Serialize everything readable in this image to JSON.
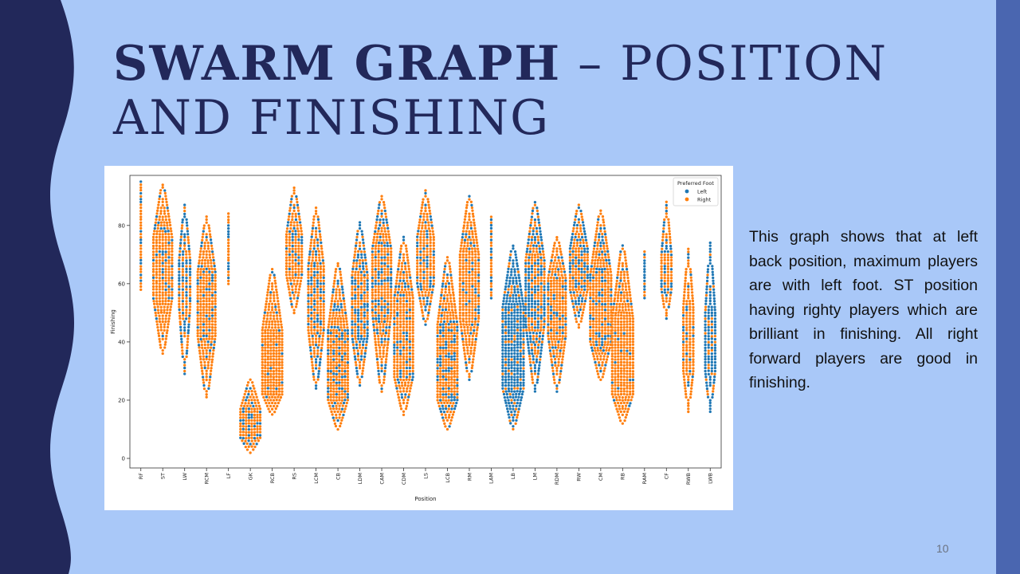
{
  "slide": {
    "title_bold": "SWARM GRAPH",
    "title_dash": " – ",
    "title_rest": "POSITION AND FINISHING",
    "description": "This graph shows that at left back position, maximum players are with left foot. ST position having righty players which are brilliant in finishing. All right forward players are good in finishing.",
    "page_number": "10"
  },
  "colors": {
    "left": "#1f77b4",
    "right": "#ff7f0e",
    "background": "#a9c8f8",
    "dark_band": "#22285a",
    "side_band": "#4a66b0"
  },
  "chart_data": {
    "type": "scatter",
    "subtype": "swarm",
    "xlabel": "Position",
    "ylabel": "Finishing",
    "ylim": [
      0,
      95
    ],
    "yticks": [
      0,
      20,
      40,
      60,
      80
    ],
    "grid": false,
    "legend": {
      "title": "Preferred Foot",
      "placement": "top-right",
      "entries": [
        "Left",
        "Right"
      ]
    },
    "categories": [
      "RF",
      "ST",
      "LW",
      "RCM",
      "LF",
      "GK",
      "RCB",
      "RS",
      "LCM",
      "CB",
      "LDM",
      "CAM",
      "CDM",
      "LS",
      "LCB",
      "RM",
      "LAM",
      "LB",
      "LM",
      "RDM",
      "RW",
      "CM",
      "RB",
      "RAM",
      "CF",
      "RWB",
      "LWB"
    ],
    "distributions": [
      {
        "position": "RF",
        "min": 58,
        "max": 95,
        "q1": 63,
        "median": 68,
        "q3": 75,
        "width": 0.15,
        "left_share": 0.45
      },
      {
        "position": "ST",
        "min": 36,
        "max": 94,
        "q1": 55,
        "median": 66,
        "q3": 76,
        "width": 0.85,
        "left_share": 0.12
      },
      {
        "position": "LW",
        "min": 29,
        "max": 87,
        "q1": 52,
        "median": 61,
        "q3": 68,
        "width": 0.5,
        "left_share": 0.5
      },
      {
        "position": "RCM",
        "min": 21,
        "max": 83,
        "q1": 42,
        "median": 55,
        "q3": 64,
        "width": 0.8,
        "left_share": 0.2
      },
      {
        "position": "LF",
        "min": 60,
        "max": 84,
        "q1": 65,
        "median": 69,
        "q3": 72,
        "width": 0.12,
        "left_share": 0.45
      },
      {
        "position": "GK",
        "min": 2,
        "max": 27,
        "q1": 7,
        "median": 12,
        "q3": 17,
        "width": 0.9,
        "left_share": 0.2
      },
      {
        "position": "RCB",
        "min": 15,
        "max": 65,
        "q1": 22,
        "median": 32,
        "q3": 44,
        "width": 0.9,
        "left_share": 0.05
      },
      {
        "position": "RS",
        "min": 50,
        "max": 93,
        "q1": 63,
        "median": 70,
        "q3": 77,
        "width": 0.7,
        "left_share": 0.2
      },
      {
        "position": "LCM",
        "min": 24,
        "max": 86,
        "q1": 44,
        "median": 56,
        "q3": 66,
        "width": 0.7,
        "left_share": 0.3
      },
      {
        "position": "CB",
        "min": 10,
        "max": 67,
        "q1": 20,
        "median": 30,
        "q3": 44,
        "width": 0.9,
        "left_share": 0.22
      },
      {
        "position": "LDM",
        "min": 25,
        "max": 81,
        "q1": 42,
        "median": 52,
        "q3": 63,
        "width": 0.7,
        "left_share": 0.4
      },
      {
        "position": "CAM",
        "min": 23,
        "max": 90,
        "q1": 50,
        "median": 62,
        "q3": 72,
        "width": 0.85,
        "left_share": 0.28
      },
      {
        "position": "CDM",
        "min": 15,
        "max": 76,
        "q1": 28,
        "median": 40,
        "q3": 55,
        "width": 0.85,
        "left_share": 0.2
      },
      {
        "position": "LS",
        "min": 46,
        "max": 92,
        "q1": 60,
        "median": 68,
        "q3": 76,
        "width": 0.75,
        "left_share": 0.25
      },
      {
        "position": "LCB",
        "min": 10,
        "max": 69,
        "q1": 20,
        "median": 32,
        "q3": 46,
        "width": 0.9,
        "left_share": 0.3
      },
      {
        "position": "RM",
        "min": 27,
        "max": 90,
        "q1": 48,
        "median": 60,
        "q3": 70,
        "width": 0.85,
        "left_share": 0.18
      },
      {
        "position": "LAM",
        "min": 55,
        "max": 83,
        "q1": 60,
        "median": 66,
        "q3": 70,
        "width": 0.12,
        "left_share": 0.5
      },
      {
        "position": "LB",
        "min": 10,
        "max": 73,
        "q1": 24,
        "median": 36,
        "q3": 52,
        "width": 0.95,
        "left_share": 0.82
      },
      {
        "position": "LM",
        "min": 23,
        "max": 88,
        "q1": 46,
        "median": 58,
        "q3": 68,
        "width": 0.85,
        "left_share": 0.55
      },
      {
        "position": "RDM",
        "min": 23,
        "max": 76,
        "q1": 42,
        "median": 52,
        "q3": 62,
        "width": 0.8,
        "left_share": 0.15
      },
      {
        "position": "RW",
        "min": 45,
        "max": 87,
        "q1": 58,
        "median": 65,
        "q3": 72,
        "width": 0.8,
        "left_share": 0.35
      },
      {
        "position": "CM",
        "min": 27,
        "max": 85,
        "q1": 40,
        "median": 52,
        "q3": 63,
        "width": 0.95,
        "left_share": 0.22
      },
      {
        "position": "RB",
        "min": 12,
        "max": 73,
        "q1": 22,
        "median": 34,
        "q3": 48,
        "width": 0.95,
        "left_share": 0.08
      },
      {
        "position": "RAM",
        "min": 55,
        "max": 71,
        "q1": 60,
        "median": 65,
        "q3": 68,
        "width": 0.1,
        "left_share": 0.5
      },
      {
        "position": "CF",
        "min": 48,
        "max": 88,
        "q1": 58,
        "median": 64,
        "q3": 70,
        "width": 0.45,
        "left_share": 0.35
      },
      {
        "position": "RWB",
        "min": 16,
        "max": 72,
        "q1": 30,
        "median": 40,
        "q3": 52,
        "width": 0.45,
        "left_share": 0.1
      },
      {
        "position": "LWB",
        "min": 16,
        "max": 74,
        "q1": 30,
        "median": 40,
        "q3": 50,
        "width": 0.45,
        "left_share": 0.78
      }
    ]
  }
}
